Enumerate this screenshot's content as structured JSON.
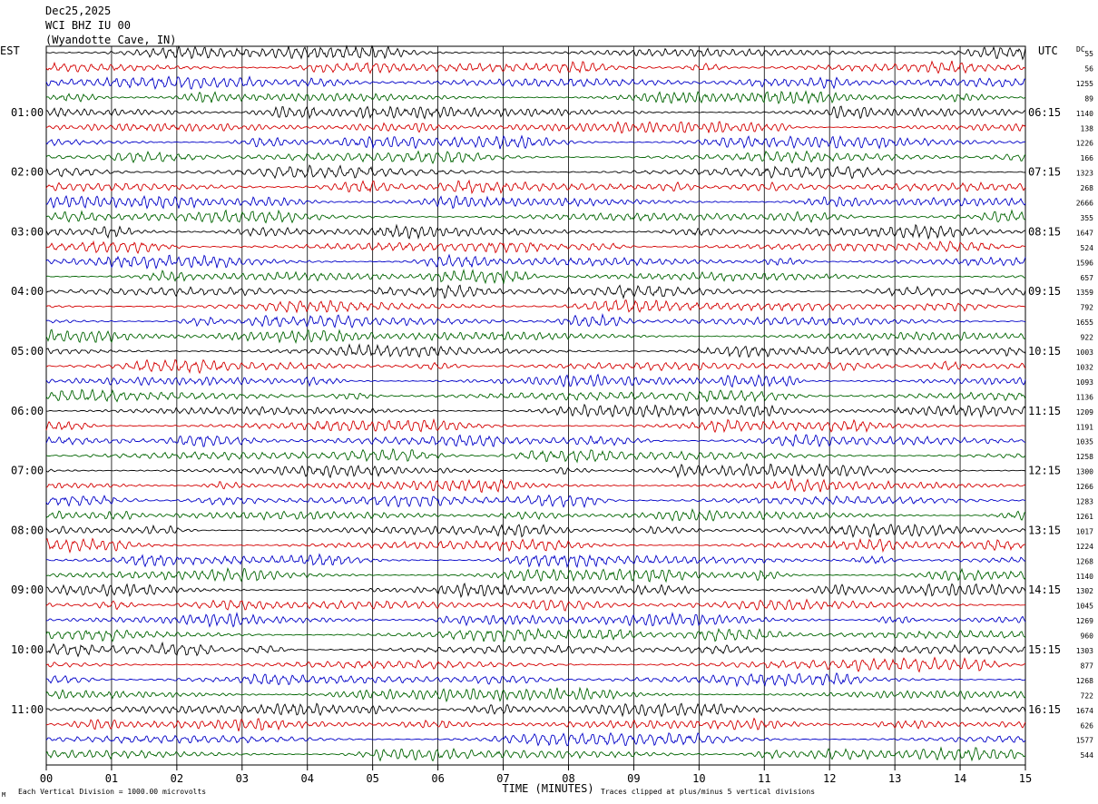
{
  "header": {
    "date": "Dec25,2025",
    "station": "WCI BHZ IU 00",
    "location": "(Wyandotte Cave, IN)"
  },
  "colors": {
    "trace_cycle": [
      "#000000",
      "#d40000",
      "#0000c8",
      "#006400"
    ],
    "grid": "#000000",
    "background": "#ffffff"
  },
  "chart_data": {
    "type": "line",
    "title": "WCI BHZ IU 00 (Wyandotte Cave, IN)",
    "xlabel": "TIME (MINUTES)",
    "left_axis_label": "EST",
    "right_axis_label": "UTC",
    "dc_label": "DC",
    "xlim": [
      0,
      15
    ],
    "x_ticks": [
      "00",
      "01",
      "02",
      "03",
      "04",
      "05",
      "06",
      "07",
      "08",
      "09",
      "10",
      "11",
      "12",
      "13",
      "14",
      "15"
    ],
    "rows_per_hour": 4,
    "row_count": 48,
    "left_time_labels": [
      "01:00",
      "02:00",
      "03:00",
      "04:00",
      "05:00",
      "06:00",
      "07:00",
      "08:00",
      "09:00",
      "10:00",
      "11:00"
    ],
    "left_label_rows": [
      4,
      8,
      12,
      16,
      20,
      24,
      28,
      32,
      36,
      40,
      44
    ],
    "right_time_labels": [
      "06:15",
      "07:15",
      "08:15",
      "09:15",
      "10:15",
      "11:15",
      "12:15",
      "13:15",
      "14:15",
      "15:15",
      "16:15"
    ],
    "right_label_rows": [
      4,
      8,
      12,
      16,
      20,
      24,
      28,
      32,
      36,
      40,
      44
    ],
    "dc_offsets": [
      "55",
      "56",
      "1255",
      "89",
      "1140",
      "138",
      "1226",
      "166",
      "1323",
      "268",
      "2666",
      "355",
      "1647",
      "524",
      "1596",
      "657",
      "1359",
      "792",
      "1655",
      "922",
      "1003",
      "1032",
      "1093",
      "1136",
      "1209",
      "1191",
      "1035",
      "1258",
      "1300",
      "1266",
      "1283",
      "1261",
      "1017",
      "1224",
      "1268",
      "1140",
      "1302",
      "1045",
      "1269",
      "960",
      "1303",
      "877",
      "1268",
      "722",
      "1674",
      "626",
      "1577",
      "544"
    ],
    "footer_left": "Each Vertical Division = 1000.00 microvolts",
    "footer_right": "Traces clipped at plus/minus 5 vertical divisions",
    "corner_mark": "M"
  }
}
